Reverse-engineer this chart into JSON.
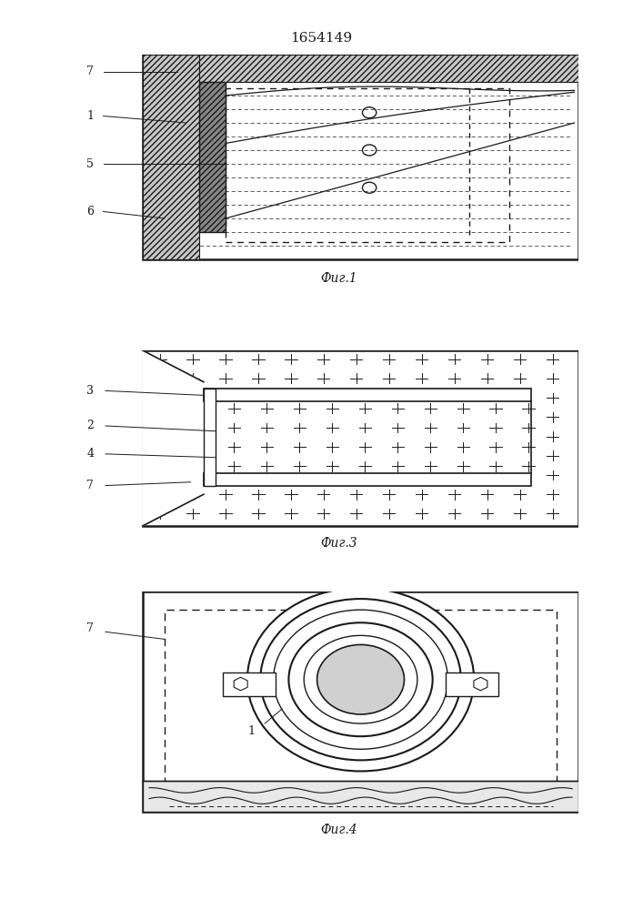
{
  "title": "1654149",
  "fig1_caption": "Фиг.1",
  "fig3_caption": "Фиг.3",
  "fig4_caption": "Фиг.4",
  "bg_color": "#ffffff",
  "line_color": "#1a1a1a"
}
